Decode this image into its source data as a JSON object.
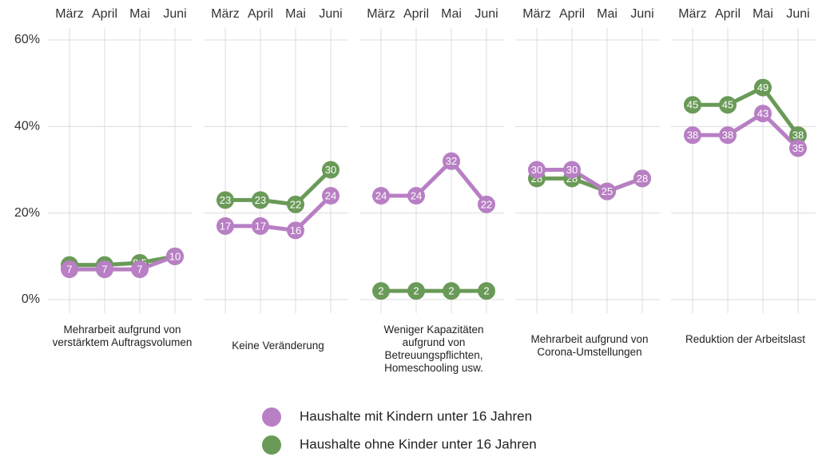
{
  "chart_data": [
    {
      "type": "line",
      "title": "Mehrarbeit aufgrund von verstärktem Auftragsvolumen",
      "categories": [
        "März",
        "April",
        "Mai",
        "Juni"
      ],
      "series": [
        {
          "name": "Haushalte ohne Kinder unter 16 Jahren",
          "color": "#6a9a58",
          "values": [
            8,
            8,
            8.5,
            10
          ]
        },
        {
          "name": "Haushalte mit Kindern unter 16 Jahren",
          "color": "#b87fc4",
          "values": [
            7,
            7,
            7,
            10
          ]
        }
      ],
      "ylim": [
        0,
        60
      ],
      "yticks": [
        {
          "value": 0,
          "label": "0%"
        },
        {
          "value": 20,
          "label": "20%"
        },
        {
          "value": 40,
          "label": "40%"
        },
        {
          "value": 60,
          "label": "60%"
        }
      ],
      "grid": true
    },
    {
      "type": "line",
      "title": "Keine Veränderung",
      "categories": [
        "März",
        "April",
        "Mai",
        "Juni"
      ],
      "series": [
        {
          "name": "Haushalte ohne Kinder unter 16 Jahren",
          "color": "#6a9a58",
          "values": [
            23,
            23,
            22,
            30
          ]
        },
        {
          "name": "Haushalte mit Kindern unter 16 Jahren",
          "color": "#b87fc4",
          "values": [
            17,
            17,
            16,
            24
          ]
        }
      ],
      "ylim": [
        0,
        60
      ],
      "yticks": [
        {
          "value": 0,
          "label": "0%"
        },
        {
          "value": 20,
          "label": "20%"
        },
        {
          "value": 40,
          "label": "40%"
        },
        {
          "value": 60,
          "label": "60%"
        }
      ],
      "grid": true
    },
    {
      "type": "line",
      "title": "Weniger Kapazitäten aufgrund von Betreuungspflichten, Homeschooling usw.",
      "categories": [
        "März",
        "April",
        "Mai",
        "Juni"
      ],
      "series": [
        {
          "name": "Haushalte ohne Kinder unter 16 Jahren",
          "color": "#6a9a58",
          "values": [
            2,
            2,
            2,
            2
          ]
        },
        {
          "name": "Haushalte mit Kindern unter 16 Jahren",
          "color": "#b87fc4",
          "values": [
            24,
            24,
            32,
            22
          ]
        }
      ],
      "ylim": [
        0,
        60
      ],
      "yticks": [
        {
          "value": 0,
          "label": "0%"
        },
        {
          "value": 20,
          "label": "20%"
        },
        {
          "value": 40,
          "label": "40%"
        },
        {
          "value": 60,
          "label": "60%"
        }
      ],
      "grid": true
    },
    {
      "type": "line",
      "title": "Mehrarbeit aufgrund von Corona-Umstellungen",
      "categories": [
        "März",
        "April",
        "Mai",
        "Juni"
      ],
      "series": [
        {
          "name": "Haushalte ohne Kinder unter 16 Jahren",
          "color": "#6a9a58",
          "values": [
            28,
            28,
            25,
            28
          ]
        },
        {
          "name": "Haushalte mit Kindern unter 16 Jahren",
          "color": "#b87fc4",
          "values": [
            30,
            30,
            25,
            28
          ]
        }
      ],
      "ylim": [
        0,
        60
      ],
      "yticks": [
        {
          "value": 0,
          "label": "0%"
        },
        {
          "value": 20,
          "label": "20%"
        },
        {
          "value": 40,
          "label": "40%"
        },
        {
          "value": 60,
          "label": "60%"
        }
      ],
      "grid": true
    },
    {
      "type": "line",
      "title": "Reduktion der Arbeitslast",
      "categories": [
        "März",
        "April",
        "Mai",
        "Juni"
      ],
      "series": [
        {
          "name": "Haushalte ohne Kinder unter 16 Jahren",
          "color": "#6a9a58",
          "values": [
            45,
            45,
            49,
            38
          ]
        },
        {
          "name": "Haushalte mit Kindern unter 16 Jahren",
          "color": "#b87fc4",
          "values": [
            38,
            38,
            43,
            35
          ]
        }
      ],
      "ylim": [
        0,
        60
      ],
      "yticks": [
        {
          "value": 0,
          "label": "0%"
        },
        {
          "value": 20,
          "label": "20%"
        },
        {
          "value": 40,
          "label": "40%"
        },
        {
          "value": 60,
          "label": "60%"
        }
      ],
      "grid": true
    }
  ]
}
